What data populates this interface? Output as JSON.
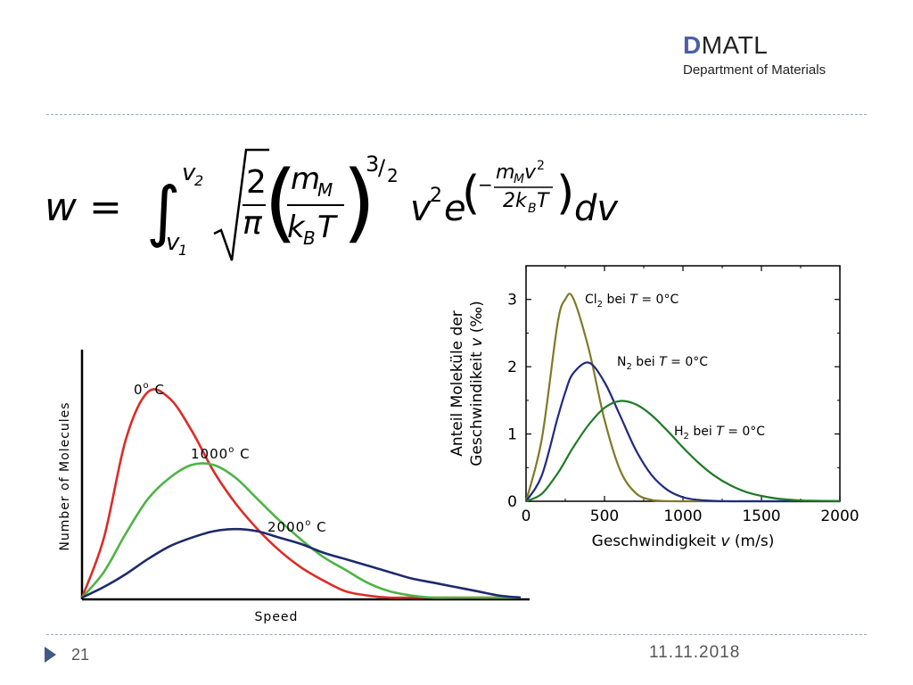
{
  "header": {
    "logo_mark": "D",
    "logo_text": "MATL",
    "department": "Department of Materials"
  },
  "formula": {
    "lhs": "w =",
    "int_lower": "v",
    "int_lower_sub": "1",
    "int_upper": "v",
    "int_upper_sub": "2",
    "sqrt_num": "2",
    "sqrt_den": "π",
    "frac_num": "m",
    "frac_num_sub": "M",
    "frac_den_a": "k",
    "frac_den_sub": "B",
    "frac_den_b": "T",
    "exp_num": "3",
    "exp_den": "2",
    "v": "v",
    "v_exp": "2",
    "e": "e",
    "ex_minus": "−",
    "ex_num_a": "m",
    "ex_num_sub": "M",
    "ex_num_b": "v",
    "ex_num_sup": "2",
    "ex_den_a": "2k",
    "ex_den_sub": "B",
    "ex_den_b": "T",
    "dv": "dv"
  },
  "footer": {
    "page": "21",
    "date": "11.11.2018"
  },
  "chart_data": [
    {
      "type": "line",
      "xlabel": "Speed",
      "ylabel": "Number of Molecules",
      "axes_ticks": false,
      "grid": false,
      "x": [
        0,
        1,
        2,
        3,
        4,
        5,
        6,
        7,
        8,
        9,
        10,
        11,
        12,
        13,
        14,
        15,
        16,
        17,
        18,
        19,
        20
      ],
      "series": [
        {
          "name": "0° C",
          "color": "#dd2b27",
          "values": [
            0,
            0.28,
            0.74,
            0.96,
            0.93,
            0.78,
            0.59,
            0.44,
            0.32,
            0.22,
            0.14,
            0.08,
            0.03,
            0.01,
            0,
            0,
            0,
            0,
            0,
            0,
            0
          ]
        },
        {
          "name": "1000° C",
          "color": "#4cb444",
          "values": [
            0,
            0.12,
            0.3,
            0.46,
            0.56,
            0.62,
            0.62,
            0.56,
            0.46,
            0.36,
            0.27,
            0.19,
            0.13,
            0.07,
            0.03,
            0.01,
            0,
            0,
            0,
            0,
            0
          ]
        },
        {
          "name": "2000° C",
          "color": "#1f2a6a",
          "values": [
            0,
            0.05,
            0.11,
            0.18,
            0.24,
            0.28,
            0.31,
            0.32,
            0.31,
            0.28,
            0.25,
            0.21,
            0.18,
            0.15,
            0.12,
            0.09,
            0.07,
            0.05,
            0.03,
            0.01,
            0
          ]
        }
      ],
      "labels": [
        {
          "text": "0",
          "sup": "o",
          "suffix": " C"
        },
        {
          "text": "1000",
          "sup": "o",
          "suffix": " C"
        },
        {
          "text": "2000",
          "sup": "o",
          "suffix": " C"
        }
      ]
    },
    {
      "type": "line",
      "xlabel_prefix": "Geschwindigkeit ",
      "xlabel_var": "v",
      "xlabel_unit": " (m/s)",
      "ylabel_line1": "Anteil Moleküle der",
      "ylabel_line2_prefix": "Geschwindikeit ",
      "ylabel_line2_var": "v",
      "ylabel_line2_unit": " (‰)",
      "xlim": [
        0,
        2000
      ],
      "ylim": [
        0,
        3.5
      ],
      "xticks": [
        0,
        500,
        1000,
        1500,
        2000
      ],
      "yticks": [
        0,
        1,
        2,
        3
      ],
      "grid": false,
      "x": [
        0,
        100,
        200,
        250,
        300,
        400,
        500,
        600,
        700,
        800,
        900,
        1000,
        1100,
        1200,
        1300,
        1400,
        1500,
        1600,
        1700,
        1800,
        2000
      ],
      "series": [
        {
          "name_prefix": "Cl",
          "name_sub": "2",
          "name_suffix": " bei ",
          "name_var": "T",
          "name_rest": " = 0°C",
          "color": "#7f7a25",
          "values": [
            0,
            0.92,
            2.63,
            3.0,
            3.02,
            2.26,
            1.21,
            0.46,
            0.12,
            0.02,
            0.003,
            0,
            0,
            0,
            0,
            0,
            0,
            0,
            0,
            0,
            0
          ]
        },
        {
          "name_prefix": "N",
          "name_sub": "2",
          "name_suffix": " bei ",
          "name_var": "T",
          "name_rest": " = 0°C",
          "color": "#1f2a80",
          "values": [
            0,
            0.38,
            1.23,
            1.62,
            1.9,
            2.06,
            1.77,
            1.27,
            0.76,
            0.39,
            0.17,
            0.06,
            0.02,
            0.005,
            0,
            0,
            0,
            0,
            0,
            0,
            0
          ]
        },
        {
          "name_prefix": "H",
          "name_sub": "2",
          "name_suffix": " bei ",
          "name_var": "T",
          "name_rest": " = 0°C",
          "color": "#1f7a26",
          "values": [
            0,
            0.11,
            0.41,
            0.6,
            0.8,
            1.14,
            1.39,
            1.49,
            1.44,
            1.28,
            1.05,
            0.8,
            0.57,
            0.38,
            0.24,
            0.14,
            0.08,
            0.04,
            0.02,
            0.008,
            0.001
          ]
        }
      ]
    }
  ]
}
